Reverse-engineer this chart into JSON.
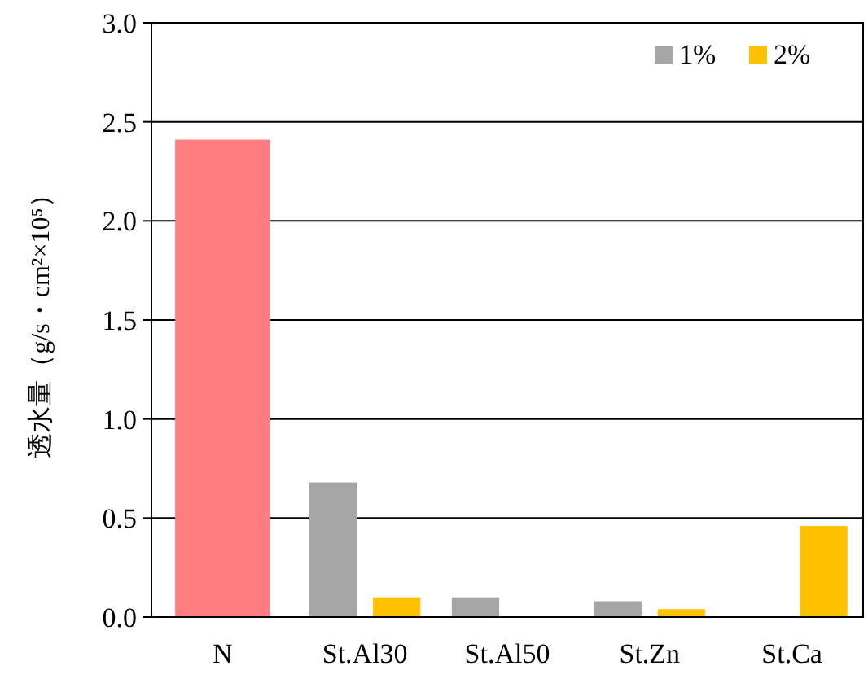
{
  "chart_data": {
    "type": "bar",
    "ylabel": "透水量（g/s・cm²×10⁵）",
    "categories": [
      "N",
      "St.Al30",
      "St.Al50",
      "St.Zn",
      "St.Ca"
    ],
    "series": [
      {
        "color": "#ff7c80",
        "values": [
          2.41,
          null,
          null,
          null,
          null
        ]
      },
      {
        "name": "1%",
        "color": "#a5a5a5",
        "values": [
          null,
          0.68,
          0.1,
          0.08,
          null
        ]
      },
      {
        "name": "2%",
        "color": "#ffc000",
        "values": [
          null,
          0.1,
          null,
          0.04,
          0.46
        ]
      }
    ],
    "ylim": [
      0,
      3
    ],
    "yticks": [
      {
        "value": 0,
        "label": "0.0"
      },
      {
        "value": 0.5,
        "label": "0.5"
      },
      {
        "value": 1,
        "label": "1.0"
      },
      {
        "value": 1.5,
        "label": "1.5"
      },
      {
        "value": 2,
        "label": "2.0"
      },
      {
        "value": 2.5,
        "label": "2.5"
      },
      {
        "value": 3,
        "label": "3.0"
      }
    ],
    "grid": "y",
    "legend": "top right"
  }
}
